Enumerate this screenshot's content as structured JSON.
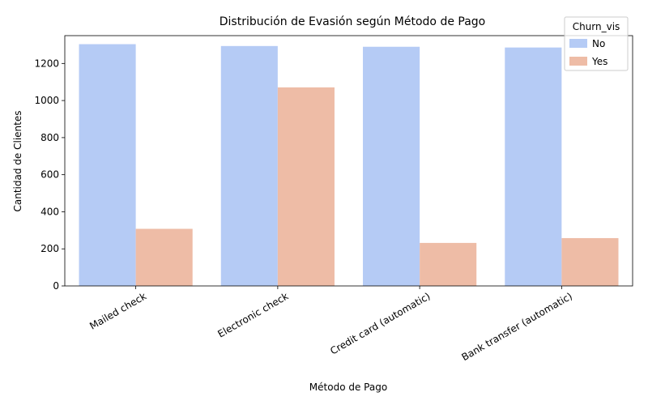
{
  "chart_data": {
    "type": "bar",
    "title": "Distribución de Evasión según Método de Pago",
    "xlabel": "Método de Pago",
    "ylabel": "Cantidad de Clientes",
    "categories": [
      "Mailed check",
      "Electronic check",
      "Credit card (automatic)",
      "Bank transfer (automatic)"
    ],
    "series": [
      {
        "name": "No",
        "values": [
          1304,
          1294,
          1290,
          1286
        ],
        "color": "#b5cbf5"
      },
      {
        "name": "Yes",
        "values": [
          308,
          1071,
          232,
          258
        ],
        "color": "#eebca6"
      }
    ],
    "ylim": [
      0,
      1350
    ],
    "yticks": [
      0,
      200,
      400,
      600,
      800,
      1000,
      1200
    ],
    "legend": {
      "title": "Churn_vis",
      "position": "top-right"
    },
    "grid": false
  }
}
